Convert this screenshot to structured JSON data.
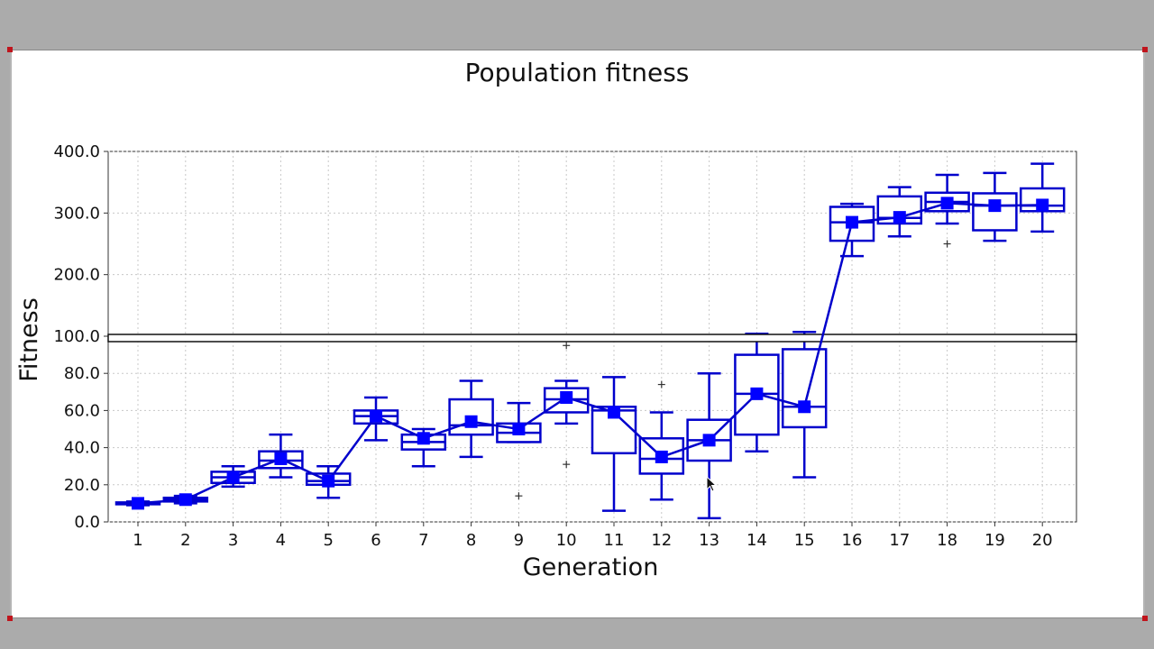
{
  "chart_data": {
    "type": "box",
    "title": "Population fitness",
    "xlabel": "Generation",
    "ylabel": "Fitness",
    "categories": [
      "1",
      "2",
      "3",
      "4",
      "5",
      "6",
      "7",
      "8",
      "9",
      "10",
      "11",
      "12",
      "13",
      "14",
      "15",
      "16",
      "17",
      "18",
      "19",
      "20"
    ],
    "y_scale": "broken axis: linear 0–100 below the break, compressed 100–400 above it",
    "yticks_lower": [
      "0.0",
      "20.0",
      "40.0",
      "60.0",
      "80.0",
      "100.0"
    ],
    "yticks_upper": [
      "200.0",
      "300.0",
      "400.0"
    ],
    "grid": true,
    "color": "#0000cc",
    "mean_marker_color": "#0000ff",
    "boxes": [
      {
        "gen": 1,
        "min": 9,
        "q1": 9.5,
        "median": 10,
        "q3": 10.5,
        "max": 11
      },
      {
        "gen": 2,
        "min": 10,
        "q1": 11,
        "median": 12,
        "q3": 13,
        "max": 14
      },
      {
        "gen": 3,
        "min": 19,
        "q1": 21,
        "median": 24,
        "q3": 27,
        "max": 30
      },
      {
        "gen": 4,
        "min": 24,
        "q1": 29,
        "median": 33,
        "q3": 38,
        "max": 47
      },
      {
        "gen": 5,
        "min": 13,
        "q1": 20,
        "median": 22,
        "q3": 26,
        "max": 30
      },
      {
        "gen": 6,
        "min": 44,
        "q1": 53,
        "median": 57,
        "q3": 60,
        "max": 67
      },
      {
        "gen": 7,
        "min": 30,
        "q1": 39,
        "median": 43,
        "q3": 47,
        "max": 50
      },
      {
        "gen": 8,
        "min": 35,
        "q1": 47,
        "median": 52,
        "q3": 66,
        "max": 76
      },
      {
        "gen": 9,
        "min": 43,
        "q1": 43,
        "median": 48,
        "q3": 53,
        "max": 64
      },
      {
        "gen": 10,
        "min": 53,
        "q1": 59,
        "median": 66,
        "q3": 72,
        "max": 76
      },
      {
        "gen": 11,
        "min": 6,
        "q1": 37,
        "median": 60,
        "q3": 62,
        "max": 78
      },
      {
        "gen": 12,
        "min": 12,
        "q1": 26,
        "median": 34,
        "q3": 45,
        "max": 59
      },
      {
        "gen": 13,
        "min": 2,
        "q1": 33,
        "median": 44,
        "q3": 55,
        "max": 80
      },
      {
        "gen": 14,
        "min": 38,
        "q1": 47,
        "median": 69,
        "q3": 90,
        "max": 104
      },
      {
        "gen": 15,
        "min": 24,
        "q1": 51,
        "median": 62,
        "q3": 93,
        "max": 107
      },
      {
        "gen": 16,
        "min": 230,
        "q1": 255,
        "median": 285,
        "q3": 310,
        "max": 315
      },
      {
        "gen": 17,
        "min": 262,
        "q1": 283,
        "median": 292,
        "q3": 327,
        "max": 342
      },
      {
        "gen": 18,
        "min": 283,
        "q1": 303,
        "median": 318,
        "q3": 333,
        "max": 362
      },
      {
        "gen": 19,
        "min": 255,
        "q1": 272,
        "median": 312,
        "q3": 332,
        "max": 365
      },
      {
        "gen": 20,
        "min": 270,
        "q1": 303,
        "median": 312,
        "q3": 340,
        "max": 380
      }
    ],
    "means": [
      10,
      12,
      24,
      34,
      22,
      57,
      45,
      54,
      50,
      67,
      59,
      35,
      44,
      69,
      62,
      285,
      293,
      316,
      312,
      313
    ],
    "outliers": [
      {
        "gen": 9,
        "value": 14
      },
      {
        "gen": 10,
        "value": 95
      },
      {
        "gen": 10,
        "value": 31
      },
      {
        "gen": 12,
        "value": 74
      },
      {
        "gen": 18,
        "value": 250
      }
    ]
  }
}
